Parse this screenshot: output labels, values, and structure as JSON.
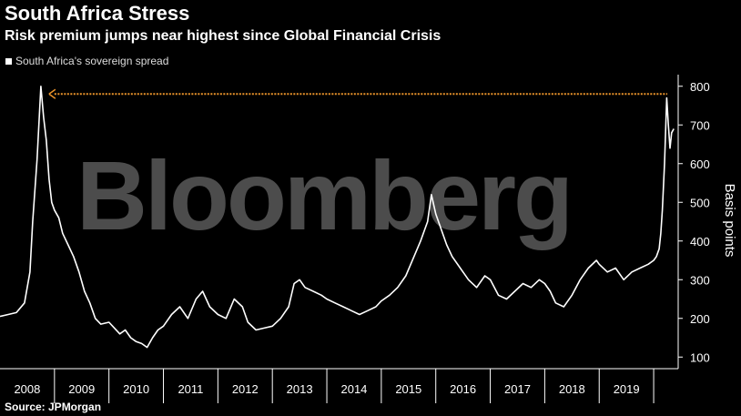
{
  "header": {
    "title": "South Africa Stress",
    "subtitle": "Risk premium jumps near highest since Global Financial Crisis"
  },
  "footer": {
    "source": "Source: JPMorgan"
  },
  "watermark": "Bloomberg",
  "colors": {
    "background": "#000000",
    "line": "#ffffff",
    "reference_line": "#e8922a"
  },
  "chart_data": {
    "type": "line",
    "title": "South Africa Stress",
    "subtitle": "Risk premium jumps near highest since Global Financial Crisis",
    "ylabel": "Basis points",
    "xlabel": "",
    "ylim": [
      70,
      830
    ],
    "xlim": [
      2008.0,
      2020.45
    ],
    "y_ticks": [
      100,
      200,
      300,
      400,
      500,
      600,
      700,
      800
    ],
    "x_tick_labels": [
      "2008",
      "2009",
      "2010",
      "2011",
      "2012",
      "2013",
      "2014",
      "2015",
      "2016",
      "2017",
      "2018",
      "2019"
    ],
    "legend": {
      "entries": [
        "South Africa's sovereign spread"
      ],
      "placement": "top-left"
    },
    "grid": false,
    "reference_line": {
      "y": 780,
      "x_start": 2009.0,
      "x_end": 2020.25
    },
    "series": [
      {
        "name": "South Africa's sovereign spread",
        "x": [
          2008.0,
          2008.15,
          2008.3,
          2008.45,
          2008.55,
          2008.6,
          2008.68,
          2008.75,
          2008.8,
          2008.85,
          2008.9,
          2008.95,
          2009.0,
          2009.08,
          2009.15,
          2009.25,
          2009.35,
          2009.45,
          2009.55,
          2009.65,
          2009.75,
          2009.85,
          2010.0,
          2010.1,
          2010.2,
          2010.3,
          2010.4,
          2010.5,
          2010.6,
          2010.7,
          2010.8,
          2010.9,
          2011.0,
          2011.15,
          2011.3,
          2011.45,
          2011.6,
          2011.72,
          2011.85,
          2012.0,
          2012.15,
          2012.3,
          2012.45,
          2012.55,
          2012.7,
          2012.85,
          2013.0,
          2013.15,
          2013.3,
          2013.4,
          2013.5,
          2013.6,
          2013.75,
          2013.9,
          2014.0,
          2014.15,
          2014.3,
          2014.45,
          2014.6,
          2014.75,
          2014.9,
          2015.0,
          2015.15,
          2015.3,
          2015.45,
          2015.6,
          2015.72,
          2015.85,
          2015.92,
          2016.0,
          2016.1,
          2016.2,
          2016.3,
          2016.45,
          2016.6,
          2016.75,
          2016.9,
          2017.0,
          2017.15,
          2017.3,
          2017.45,
          2017.6,
          2017.75,
          2017.9,
          2018.0,
          2018.1,
          2018.2,
          2018.35,
          2018.5,
          2018.65,
          2018.8,
          2018.95,
          2019.0,
          2019.15,
          2019.3,
          2019.45,
          2019.6,
          2019.75,
          2019.9,
          2020.0,
          2020.05,
          2020.1,
          2020.13,
          2020.16,
          2020.2,
          2020.24,
          2020.27,
          2020.3,
          2020.33,
          2020.37
        ],
        "values": [
          205,
          210,
          215,
          240,
          320,
          450,
          610,
          800,
          720,
          660,
          560,
          500,
          480,
          460,
          420,
          390,
          360,
          320,
          270,
          240,
          200,
          185,
          190,
          175,
          160,
          170,
          150,
          140,
          135,
          125,
          150,
          170,
          180,
          210,
          230,
          200,
          250,
          270,
          230,
          210,
          200,
          250,
          230,
          190,
          170,
          175,
          180,
          200,
          230,
          290,
          300,
          280,
          270,
          260,
          250,
          240,
          230,
          220,
          210,
          220,
          230,
          245,
          260,
          280,
          310,
          360,
          400,
          450,
          520,
          470,
          430,
          390,
          360,
          330,
          300,
          280,
          310,
          300,
          260,
          250,
          270,
          290,
          280,
          300,
          290,
          270,
          240,
          230,
          260,
          300,
          330,
          350,
          340,
          320,
          330,
          300,
          320,
          330,
          340,
          350,
          360,
          380,
          420,
          480,
          600,
          770,
          700,
          640,
          680,
          690
        ]
      }
    ]
  }
}
